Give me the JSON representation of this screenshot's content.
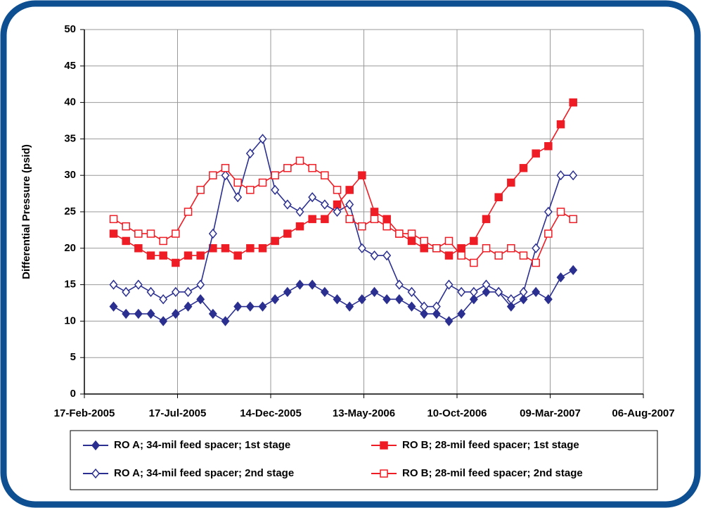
{
  "chart_data": {
    "type": "line",
    "y_label": "Differential Pressure (psid)",
    "x": [
      "2005-04-05",
      "2005-04-25",
      "2005-05-15",
      "2005-06-04",
      "2005-06-24",
      "2005-07-14",
      "2005-08-03",
      "2005-08-23",
      "2005-09-12",
      "2005-10-02",
      "2005-10-22",
      "2005-11-11",
      "2005-12-01",
      "2005-12-21",
      "2006-01-10",
      "2006-01-30",
      "2006-02-19",
      "2006-03-11",
      "2006-03-31",
      "2006-04-20",
      "2006-05-10",
      "2006-05-30",
      "2006-06-19",
      "2006-07-09",
      "2006-07-29",
      "2006-08-18",
      "2006-09-07",
      "2006-09-27",
      "2006-10-17",
      "2006-11-06",
      "2006-11-26",
      "2006-12-16",
      "2007-01-05",
      "2007-01-25",
      "2007-02-14",
      "2007-03-06",
      "2007-03-26",
      "2007-04-15"
    ],
    "series": [
      {
        "name": "RO A; 34-mil feed spacer; 1st stage",
        "color": "#2b2f8f",
        "marker": "diamond",
        "filled": true,
        "values": [
          12,
          11,
          11,
          11,
          10,
          11,
          12,
          13,
          11,
          10,
          12,
          12,
          12,
          13,
          14,
          15,
          15,
          14,
          13,
          12,
          13,
          14,
          13,
          13,
          12,
          11,
          11,
          10,
          11,
          13,
          14,
          14,
          12,
          13,
          14,
          13,
          16,
          17
        ]
      },
      {
        "name": "RO B; 28-mil feed spacer; 1st stage",
        "color": "#ee1c24",
        "marker": "square",
        "filled": true,
        "values": [
          22,
          21,
          20,
          19,
          19,
          18,
          19,
          19,
          20,
          20,
          19,
          20,
          20,
          21,
          22,
          23,
          24,
          24,
          26,
          28,
          30,
          25,
          24,
          22,
          21,
          20,
          20,
          19,
          20,
          21,
          24,
          27,
          29,
          31,
          33,
          34,
          37,
          40
        ]
      },
      {
        "name": "RO A; 34-mil feed spacer; 2nd stage",
        "color": "#2b2f8f",
        "marker": "diamond",
        "filled": false,
        "values": [
          15,
          14,
          15,
          14,
          13,
          14,
          14,
          15,
          22,
          30,
          27,
          33,
          35,
          28,
          26,
          25,
          27,
          26,
          25,
          26,
          20,
          19,
          19,
          15,
          14,
          12,
          12,
          15,
          14,
          14,
          15,
          14,
          13,
          14,
          20,
          25,
          30,
          30
        ]
      },
      {
        "name": "RO B; 28-mil feed spacer; 2nd stage",
        "color": "#ee1c24",
        "marker": "square",
        "filled": false,
        "values": [
          24,
          23,
          22,
          22,
          21,
          22,
          25,
          28,
          30,
          31,
          29,
          28,
          29,
          30,
          31,
          32,
          31,
          30,
          28,
          24,
          23,
          24,
          23,
          22,
          22,
          21,
          20,
          21,
          19,
          18,
          20,
          19,
          20,
          19,
          18,
          22,
          25,
          24
        ]
      }
    ],
    "xlim": [
      "2005-02-17",
      "2007-08-06"
    ],
    "xticks": [
      {
        "value": "2005-02-17",
        "label": "17-Feb-2005"
      },
      {
        "value": "2005-07-17",
        "label": "17-Jul-2005"
      },
      {
        "value": "2005-12-14",
        "label": "14-Dec-2005"
      },
      {
        "value": "2006-05-13",
        "label": "13-May-2006"
      },
      {
        "value": "2006-10-10",
        "label": "10-Oct-2006"
      },
      {
        "value": "2007-03-09",
        "label": "09-Mar-2007"
      },
      {
        "value": "2007-08-06",
        "label": "06-Aug-2007"
      }
    ],
    "ylim": [
      0,
      50
    ],
    "yticks": [
      0,
      5,
      10,
      15,
      20,
      25,
      30,
      35,
      40,
      45,
      50
    ],
    "grid": true
  }
}
